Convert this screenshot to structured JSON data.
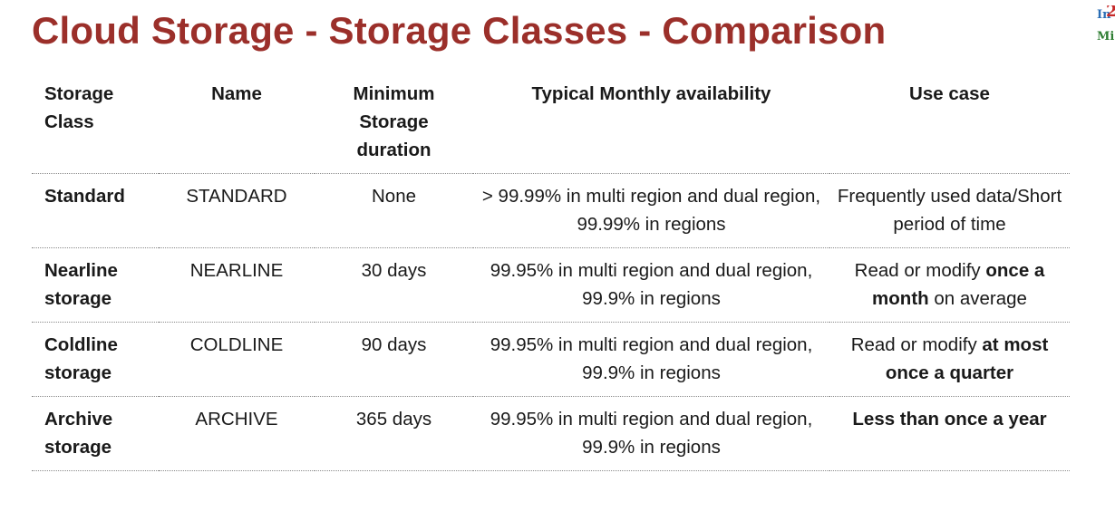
{
  "title": "Cloud Storage - Storage Classes - Comparison",
  "logo": {
    "part1": "In",
    "part2": "2",
    "part3": "Mi"
  },
  "table": {
    "headers": [
      "Storage Class",
      "Name",
      "Minimum Storage duration",
      "Typical Monthly availability",
      "Use case"
    ],
    "rows": [
      {
        "storage_class": "Standard",
        "name": "STANDARD",
        "min_duration": "None",
        "availability": "> 99.99% in multi region and dual region, 99.99% in regions",
        "use_case": {
          "pre": "Frequently used data/Short period of time",
          "bold": "",
          "post": ""
        }
      },
      {
        "storage_class": "Nearline storage",
        "name": "NEARLINE",
        "min_duration": "30 days",
        "availability": "99.95% in multi region and dual region, 99.9% in regions",
        "use_case": {
          "pre": "Read or modify ",
          "bold": "once a month",
          "post": " on average"
        }
      },
      {
        "storage_class": "Coldline storage",
        "name": "COLDLINE",
        "min_duration": "90 days",
        "availability": "99.95% in multi region and dual region, 99.9% in regions",
        "use_case": {
          "pre": "Read or modify ",
          "bold": "at most once a quarter",
          "post": ""
        }
      },
      {
        "storage_class": "Archive storage",
        "name": "ARCHIVE",
        "min_duration": "365 days",
        "availability": "99.95% in multi region and dual region, 99.9% in regions",
        "use_case": {
          "pre": "",
          "bold": "Less than once a year",
          "post": ""
        }
      }
    ]
  }
}
